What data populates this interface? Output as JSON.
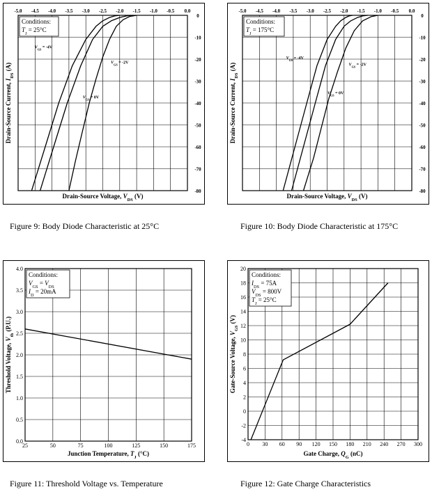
{
  "charts_meta": {
    "frame_color": "#000000",
    "grid_color": "#000000",
    "curve_color": "#000000"
  },
  "chart_data": [
    {
      "id": "fig9",
      "type": "line",
      "caption": "Figure 9: Body Diode Characteristic at 25°C",
      "xlabel": "Drain-Source Voltage, VDS (V)",
      "ylabel": "Drain-Source Current, IDS (A)",
      "xlim": [
        -5.0,
        0.0
      ],
      "ylim": [
        -80,
        0
      ],
      "x_ticks": [
        "-5.0",
        "-4.5",
        "-4.0",
        "-3.5",
        "-3.0",
        "-2.5",
        "-2.0",
        "-1.5",
        "-1.0",
        "-0.5",
        "0.0"
      ],
      "y_ticks": [
        "0",
        "-10",
        "-20",
        "-30",
        "-40",
        "-50",
        "-60",
        "-70",
        "-80"
      ],
      "x_axis_position": "top",
      "y_axis_position": "right",
      "grid": true,
      "conditions": [
        "Conditions:",
        "TJ = 25°C"
      ],
      "series": [
        {
          "name": "VGS = -4V",
          "x": [
            -4.6,
            -4.2,
            -3.8,
            -3.4,
            -3.0,
            -2.7,
            -2.5,
            -2.3,
            -2.15,
            -2.0
          ],
          "y": [
            -80,
            -60,
            -40,
            -23,
            -11,
            -5,
            -2.5,
            -1,
            -0.3,
            0
          ]
        },
        {
          "name": "VGS = -2V",
          "x": [
            -4.35,
            -3.95,
            -3.55,
            -3.15,
            -2.8,
            -2.5,
            -2.25,
            -2.0,
            -1.8,
            -1.6
          ],
          "y": [
            -80,
            -60,
            -40,
            -23,
            -11,
            -5,
            -2.5,
            -1,
            -0.3,
            0
          ]
        },
        {
          "name": "VGS = 0V",
          "x": [
            -3.5,
            -3.3,
            -3.1,
            -2.9,
            -2.7,
            -2.5,
            -2.3,
            -2.1,
            -1.9,
            -1.7,
            -1.5
          ],
          "y": [
            -80,
            -66,
            -53,
            -40,
            -29,
            -19,
            -11,
            -5,
            -2,
            -0.5,
            0
          ]
        }
      ],
      "annotations": [
        {
          "text": "VGS = -4V",
          "x": -4.25,
          "y": -15
        },
        {
          "text": "VGS = -2V",
          "x": -2.0,
          "y": -22
        },
        {
          "text": "VGS = 0V",
          "x": -2.85,
          "y": -38
        }
      ]
    },
    {
      "id": "fig10",
      "type": "line",
      "caption": "Figure 10: Body Diode Characteristic at 175°C",
      "xlabel": "Drain-Source Voltage, VDS (V)",
      "ylabel": "Drain-Source Current, IDS (A)",
      "xlim": [
        -5.0,
        0.0
      ],
      "ylim": [
        -80,
        0
      ],
      "x_ticks": [
        "-5.0",
        "-4.5",
        "-4.0",
        "-3.5",
        "-3.0",
        "-2.5",
        "-2.0",
        "-1.5",
        "-1.0",
        "-0.5",
        "0.0"
      ],
      "y_ticks": [
        "0",
        "-10",
        "-20",
        "-30",
        "-40",
        "-50",
        "-60",
        "-70",
        "-80"
      ],
      "x_axis_position": "top",
      "y_axis_position": "right",
      "grid": true,
      "conditions": [
        "Conditions:",
        "TJ = 175°C"
      ],
      "series": [
        {
          "name": "VGS = -4V",
          "x": [
            -3.8,
            -3.45,
            -3.1,
            -2.8,
            -2.5,
            -2.25,
            -2.1,
            -1.95,
            -1.85,
            -1.75
          ],
          "y": [
            -80,
            -60,
            -40,
            -23,
            -11,
            -5,
            -2.5,
            -1,
            -0.3,
            0
          ]
        },
        {
          "name": "VGS = -2V",
          "x": [
            -3.55,
            -3.2,
            -2.85,
            -2.55,
            -2.25,
            -2.0,
            -1.8,
            -1.6,
            -1.45,
            -1.3
          ],
          "y": [
            -80,
            -60,
            -40,
            -23,
            -11,
            -5,
            -2.5,
            -1,
            -0.3,
            0
          ]
        },
        {
          "name": "VGS = 0V",
          "x": [
            -3.2,
            -2.9,
            -2.65,
            -2.45,
            -2.2,
            -1.95,
            -1.7,
            -1.45,
            -1.2,
            -1.0
          ],
          "y": [
            -80,
            -65,
            -50,
            -38,
            -26,
            -15,
            -7,
            -2.5,
            -0.6,
            0
          ]
        }
      ],
      "annotations": [
        {
          "text": "VGS = -4V",
          "x": -3.45,
          "y": -20
        },
        {
          "text": "VGS = -2V",
          "x": -1.6,
          "y": -23
        },
        {
          "text": "VGS = 0V",
          "x": -2.25,
          "y": -36
        }
      ]
    },
    {
      "id": "fig11",
      "type": "line",
      "caption": "Figure 11: Threshold Voltage vs. Temperature",
      "xlabel": "Junction Temperature, TJ (°C)",
      "ylabel": "Threshold Voltage, Vth (P.U.)",
      "xlim": [
        25,
        175
      ],
      "ylim": [
        0.0,
        4.0
      ],
      "x_ticks": [
        "25",
        "50",
        "75",
        "100",
        "125",
        "150",
        "175"
      ],
      "y_ticks": [
        "0.0",
        "0.5",
        "1.0",
        "1.5",
        "2.0",
        "2.5",
        "3.0",
        "3.5",
        "4.0"
      ],
      "grid": true,
      "conditions": [
        "Conditions:",
        "VGS = VDS",
        "ID = 20mA"
      ],
      "series": [
        {
          "name": "",
          "x": [
            25,
            175
          ],
          "y": [
            2.6,
            1.9
          ]
        }
      ]
    },
    {
      "id": "fig12",
      "type": "line",
      "caption": "Figure 12: Gate Charge Characteristics",
      "xlabel": "Gate Charge, QG (nC)",
      "ylabel": "Gate-Source Voltage, VGS (V)",
      "xlim": [
        0,
        300
      ],
      "ylim": [
        -4,
        20
      ],
      "x_ticks": [
        "0",
        "30",
        "60",
        "90",
        "120",
        "150",
        "180",
        "210",
        "240",
        "270",
        "300"
      ],
      "y_ticks": [
        "20",
        "18",
        "16",
        "14",
        "12",
        "10",
        "8",
        "6",
        "4",
        "2",
        "0",
        "-2",
        "-4"
      ],
      "grid": true,
      "conditions": [
        "Conditions:",
        "IDS = 75A",
        "VDS = 800V",
        "TJ = 25°C"
      ],
      "series": [
        {
          "name": "",
          "x": [
            5,
            62,
            180,
            247
          ],
          "y": [
            -4,
            7.2,
            12.2,
            18
          ]
        }
      ]
    }
  ]
}
